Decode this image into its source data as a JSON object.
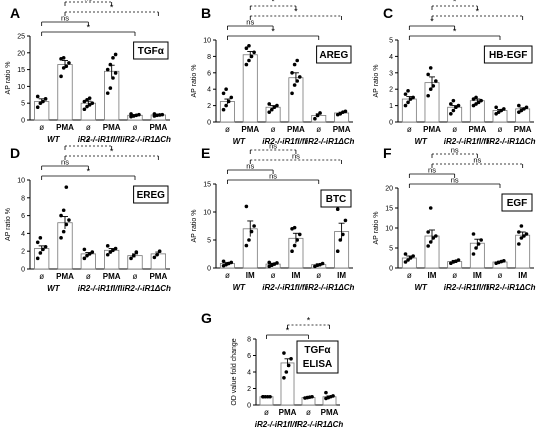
{
  "chart_data": [
    {
      "id": "A",
      "type": "bar",
      "panel_letter": "A",
      "ylabel": "AP ratio %",
      "ylim": [
        0,
        25
      ],
      "yticks": [
        0,
        5,
        10,
        15,
        20,
        25
      ],
      "legend_box": "TGFα",
      "x_labels": [
        "ø",
        "PMA",
        "ø",
        "PMA",
        "ø",
        "PMA"
      ],
      "group_labels": [
        "WT",
        "iR2-/-iR1fl/fl",
        "iR2-/-iR1ΔCh"
      ],
      "values": [
        5.5,
        16.5,
        5.0,
        14.5,
        1.4,
        1.5
      ],
      "errors": [
        0.8,
        1.2,
        0.6,
        1.8,
        0.2,
        0.2
      ],
      "points": [
        [
          3.8,
          5.0,
          5.5,
          6.3,
          7.0
        ],
        [
          13.0,
          15.5,
          16.0,
          17.0,
          18.2,
          18.5
        ],
        [
          3.2,
          4.0,
          4.5,
          5.0,
          5.5,
          6.0,
          6.5
        ],
        [
          8.0,
          9.5,
          12.5,
          14.0,
          15.0,
          16.5,
          18.5,
          19.5
        ],
        [
          1.0,
          1.2,
          1.4,
          1.6,
          1.8
        ],
        [
          1.2,
          1.4,
          1.5,
          1.6,
          1.8
        ]
      ],
      "significance": [
        {
          "from": 1,
          "to": 3,
          "label": "ns",
          "style": "dashed"
        },
        {
          "from": 1,
          "to": 5,
          "label": "*",
          "style": "dashed"
        },
        {
          "from": 0,
          "to": 2,
          "label": "ns",
          "style": "solid"
        },
        {
          "from": 0,
          "to": 4,
          "label": "*",
          "style": "solid"
        }
      ]
    },
    {
      "id": "B",
      "type": "bar",
      "panel_letter": "B",
      "ylabel": "AP ratio %",
      "ylim": [
        0,
        10
      ],
      "yticks": [
        0,
        2,
        4,
        6,
        8,
        10
      ],
      "legend_box": "AREG",
      "x_labels": [
        "ø",
        "PMA",
        "ø",
        "PMA",
        "ø",
        "PMA"
      ],
      "group_labels": [
        "WT",
        "iR2-/-iR1fl/fl",
        "iR2-/-iR1ΔCh"
      ],
      "values": [
        2.5,
        8.2,
        1.8,
        5.4,
        0.8,
        1.1
      ],
      "errors": [
        0.3,
        0.4,
        0.2,
        0.6,
        0.2,
        0.1
      ],
      "points": [
        [
          1.5,
          2.0,
          2.5,
          3.0,
          3.5,
          4.0
        ],
        [
          7.0,
          7.5,
          8.0,
          8.5,
          9.0,
          9.3
        ],
        [
          1.2,
          1.5,
          1.8,
          2.0,
          2.2
        ],
        [
          3.5,
          4.5,
          5.0,
          5.5,
          6.0,
          7.0,
          7.5
        ],
        [
          0.4,
          0.8,
          1.1
        ],
        [
          0.9,
          1.0,
          1.2,
          1.3
        ]
      ],
      "significance": [
        {
          "from": 1,
          "to": 3,
          "label": "*",
          "style": "dashed"
        },
        {
          "from": 1,
          "to": 5,
          "label": "*",
          "style": "dashed"
        },
        {
          "from": 0,
          "to": 2,
          "label": "ns",
          "style": "solid"
        },
        {
          "from": 0,
          "to": 4,
          "label": "*",
          "style": "solid"
        }
      ]
    },
    {
      "id": "C",
      "type": "bar",
      "panel_letter": "C",
      "ylabel": "AP ratio %",
      "ylim": [
        0,
        5
      ],
      "yticks": [
        0,
        1,
        2,
        3,
        4,
        5
      ],
      "legend_box": "HB-EGF",
      "x_labels": [
        "ø",
        "PMA",
        "ø",
        "PMA",
        "ø",
        "PMA"
      ],
      "group_labels": [
        "WT",
        "iR2-/-iR1fl/fl",
        "iR2-/-iR1ΔCh"
      ],
      "values": [
        1.4,
        2.4,
        0.9,
        1.3,
        0.7,
        0.8
      ],
      "errors": [
        0.15,
        0.35,
        0.1,
        0.1,
        0.06,
        0.06
      ],
      "points": [
        [
          1.0,
          1.2,
          1.4,
          1.5,
          1.7,
          1.9
        ],
        [
          1.6,
          2.0,
          2.2,
          2.5,
          2.9,
          3.3
        ],
        [
          0.5,
          0.7,
          0.9,
          1.0,
          1.1,
          1.3
        ],
        [
          1.0,
          1.1,
          1.2,
          1.3,
          1.4,
          1.5
        ],
        [
          0.5,
          0.6,
          0.7,
          0.8,
          0.9
        ],
        [
          0.6,
          0.7,
          0.8,
          0.9,
          1.0
        ]
      ],
      "significance": [
        {
          "from": 1,
          "to": 3,
          "label": "*",
          "style": "dashed"
        },
        {
          "from": 1,
          "to": 5,
          "label": "*",
          "style": "dashed"
        },
        {
          "from": 0,
          "to": 2,
          "label": "*",
          "style": "solid"
        },
        {
          "from": 0,
          "to": 4,
          "label": "*",
          "style": "solid"
        }
      ]
    },
    {
      "id": "D",
      "type": "bar",
      "panel_letter": "D",
      "ylabel": "AP ratio %",
      "ylim": [
        0,
        10
      ],
      "yticks": [
        0,
        2,
        4,
        6,
        8,
        10
      ],
      "legend_box": "EREG",
      "x_labels": [
        "ø",
        "PMA",
        "ø",
        "PMA",
        "ø",
        "PMA"
      ],
      "group_labels": [
        "WT",
        "iR2-/-iR1fl/fl",
        "iR2-/-iR1ΔCh"
      ],
      "values": [
        2.3,
        5.2,
        1.7,
        2.1,
        1.5,
        1.7
      ],
      "errors": [
        0.3,
        0.7,
        0.15,
        0.2,
        0.2,
        0.2
      ],
      "points": [
        [
          1.2,
          1.8,
          2.2,
          2.5,
          3.0,
          3.5
        ],
        [
          3.5,
          4.2,
          5.0,
          5.5,
          6.0,
          6.6,
          9.2
        ],
        [
          1.2,
          1.5,
          1.7,
          1.9,
          2.2
        ],
        [
          1.6,
          1.9,
          2.1,
          2.3,
          2.6
        ],
        [
          1.2,
          1.5,
          1.9
        ],
        [
          1.3,
          1.6,
          2.0
        ]
      ],
      "significance": [
        {
          "from": 1,
          "to": 3,
          "label": "*",
          "style": "dashed"
        },
        {
          "from": 1,
          "to": 5,
          "label": "*",
          "style": "dashed"
        },
        {
          "from": 0,
          "to": 2,
          "label": "ns",
          "style": "solid"
        },
        {
          "from": 0,
          "to": 4,
          "label": "*",
          "style": "solid"
        }
      ]
    },
    {
      "id": "E",
      "type": "bar",
      "panel_letter": "E",
      "ylabel": "AP ratio %",
      "ylim": [
        0,
        15
      ],
      "yticks": [
        0,
        5,
        10,
        15
      ],
      "legend_box": "BTC",
      "x_labels": [
        "ø",
        "IM",
        "ø",
        "IM",
        "ø",
        "IM"
      ],
      "group_labels": [
        "WT",
        "iR2-/-iR1fl/fl",
        "iR2-/-iR1ΔCh"
      ],
      "values": [
        0.8,
        7.0,
        0.7,
        5.3,
        0.6,
        6.5
      ],
      "errors": [
        0.2,
        1.4,
        0.15,
        0.9,
        0.15,
        1.5
      ],
      "points": [
        [
          0.4,
          0.6,
          0.8,
          1.0,
          1.2
        ],
        [
          4.0,
          5.0,
          6.5,
          7.5,
          11.0
        ],
        [
          0.3,
          0.5,
          0.7,
          0.9,
          1.0
        ],
        [
          3.0,
          4.0,
          5.0,
          6.0,
          7.0,
          7.2
        ],
        [
          0.3,
          0.5,
          0.6,
          0.8
        ],
        [
          3.0,
          5.0,
          6.0,
          8.5,
          10.5
        ]
      ],
      "significance": [
        {
          "from": 1,
          "to": 3,
          "label": "ns",
          "style": "dashed"
        },
        {
          "from": 1,
          "to": 5,
          "label": "ns",
          "style": "dashed"
        },
        {
          "from": 0,
          "to": 2,
          "label": "ns",
          "style": "solid"
        },
        {
          "from": 0,
          "to": 4,
          "label": "ns",
          "style": "solid"
        }
      ]
    },
    {
      "id": "F",
      "type": "bar",
      "panel_letter": "F",
      "ylabel": "AP ratio %",
      "ylim": [
        0,
        20
      ],
      "yticks": [
        0,
        5,
        10,
        15,
        20
      ],
      "legend_box": "EGF",
      "x_labels": [
        "ø",
        "IM",
        "ø",
        "IM",
        "ø",
        "IM"
      ],
      "group_labels": [
        "WT",
        "iR2-/-iR1fl/fl",
        "iR2-/-iR1ΔCh"
      ],
      "values": [
        2.5,
        8.0,
        1.6,
        6.2,
        1.5,
        8.2
      ],
      "errors": [
        0.5,
        1.5,
        0.3,
        1.0,
        0.2,
        0.8
      ],
      "points": [
        [
          1.5,
          2.0,
          2.5,
          3.0,
          3.5
        ],
        [
          5.5,
          6.5,
          7.5,
          8.0,
          9.0,
          15.0
        ],
        [
          1.2,
          1.5,
          1.7,
          2.0
        ],
        [
          3.5,
          5.0,
          6.0,
          7.0,
          8.5
        ],
        [
          1.2,
          1.4,
          1.6,
          1.8
        ],
        [
          6.0,
          7.5,
          8.0,
          8.5,
          9.0,
          10.5
        ]
      ],
      "significance": [
        {
          "from": 1,
          "to": 3,
          "label": "ns",
          "style": "dashed"
        },
        {
          "from": 1,
          "to": 5,
          "label": "ns",
          "style": "dashed"
        },
        {
          "from": 0,
          "to": 2,
          "label": "ns",
          "style": "solid"
        },
        {
          "from": 0,
          "to": 4,
          "label": "ns",
          "style": "solid"
        }
      ]
    },
    {
      "id": "G",
      "type": "bar",
      "panel_letter": "G",
      "ylabel": "OD value fold change",
      "ylim": [
        0,
        8
      ],
      "yticks": [
        0,
        2,
        4,
        6,
        8
      ],
      "legend_box": "TGFα\nELISA",
      "x_labels": [
        "ø",
        "PMA",
        "ø",
        "PMA"
      ],
      "group_labels": [
        "iR2-/-iR1fl/fl",
        "iR2-/-iR1ΔCh"
      ],
      "values": [
        1.0,
        5.1,
        0.9,
        1.0
      ],
      "errors": [
        0.05,
        0.5,
        0.05,
        0.1
      ],
      "points": [
        [
          1.0,
          1.0,
          1.0,
          1.0,
          1.0
        ],
        [
          3.3,
          4.0,
          4.8,
          5.6,
          6.3
        ],
        [
          0.85,
          0.9,
          0.95,
          1.0
        ],
        [
          0.8,
          0.9,
          1.0,
          1.1,
          1.5
        ]
      ],
      "significance": [
        {
          "from": 1,
          "to": 3,
          "label": "*",
          "style": "dashed"
        },
        {
          "from": 0,
          "to": 2,
          "label": "*",
          "style": "solid"
        }
      ]
    }
  ]
}
